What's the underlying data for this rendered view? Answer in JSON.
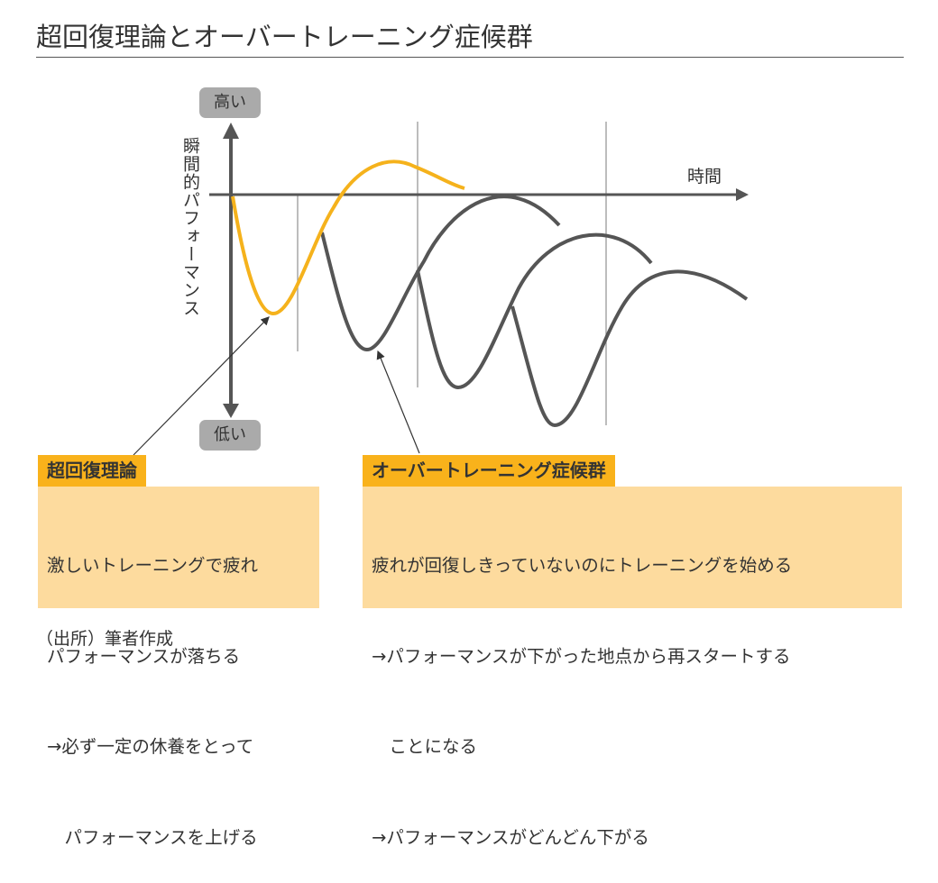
{
  "title": "超回復理論とオーバートレーニング症候群",
  "axis": {
    "y_high": "高い",
    "y_low": "低い",
    "y_label": "瞬間的パフォーマンス",
    "x_label": "時間"
  },
  "colors": {
    "supercompensation_curve": "#f5b21c",
    "overtraining_curve": "#555555",
    "header_fill": "#f9b21b",
    "box_fill": "#fddb9e"
  },
  "supercompensation": {
    "header": "超回復理論",
    "lines": [
      "激しいトレーニングで疲れ",
      "パフォーマンスが落ちる",
      "→必ず一定の休養をとって",
      "　パフォーマンスを上げる"
    ]
  },
  "overtraining": {
    "header": "オーバートレーニング症候群",
    "lines": [
      "疲れが回復しきっていないのにトレーニングを始める",
      "→パフォーマンスが下がった地点から再スタートする",
      "　ことになる",
      "→パフォーマンスがどんどん下がる"
    ]
  },
  "source": "（出所）筆者作成"
}
